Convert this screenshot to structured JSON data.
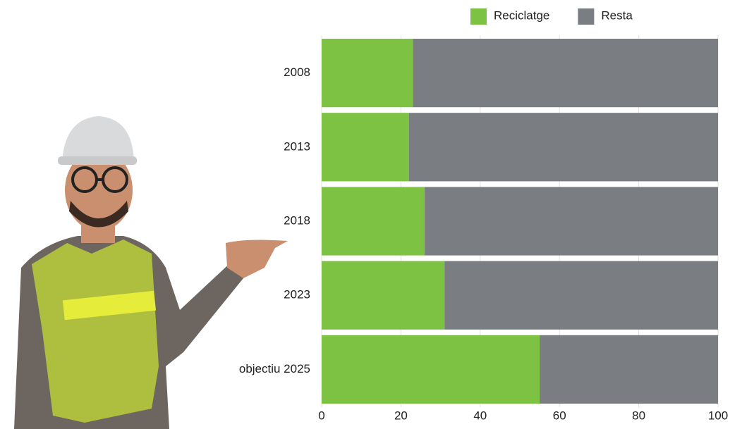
{
  "chart_data": {
    "type": "stacked-bar-horizontal",
    "categories": [
      "2008",
      "2013",
      "2018",
      "2023",
      "objectiu 2025"
    ],
    "series": [
      {
        "name": "Reciclatge",
        "color": "#7dc242",
        "values": [
          23,
          22,
          26,
          31,
          55
        ]
      },
      {
        "name": "Resta",
        "color": "#7a7d82",
        "values": [
          77,
          78,
          74,
          69,
          45
        ]
      }
    ],
    "xlim": [
      0,
      100
    ],
    "xticks": [
      0,
      20,
      40,
      60,
      80,
      100
    ],
    "grid": true,
    "legend": "top"
  }
}
